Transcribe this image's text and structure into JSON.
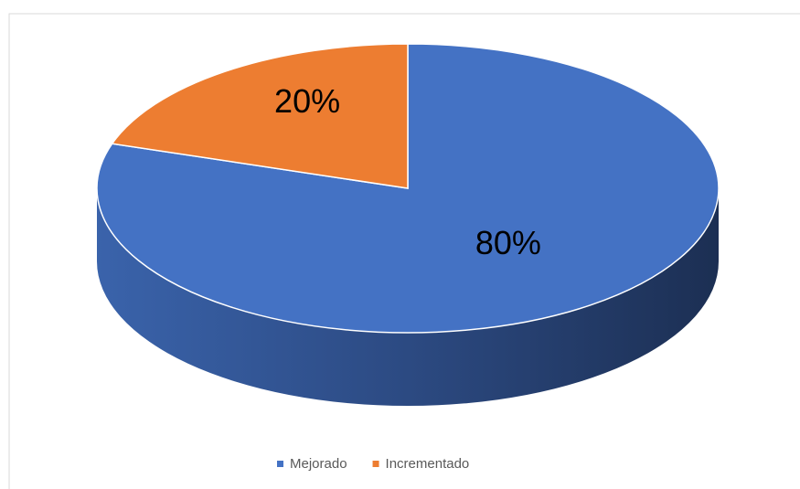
{
  "chart_data": {
    "type": "pie",
    "categories": [
      "Mejorado",
      "Incrementado"
    ],
    "values": [
      80,
      20
    ],
    "value_labels": [
      "80%",
      "20%"
    ],
    "colors": [
      "#4472c4",
      "#ed7d31"
    ],
    "legend": "bottom"
  }
}
